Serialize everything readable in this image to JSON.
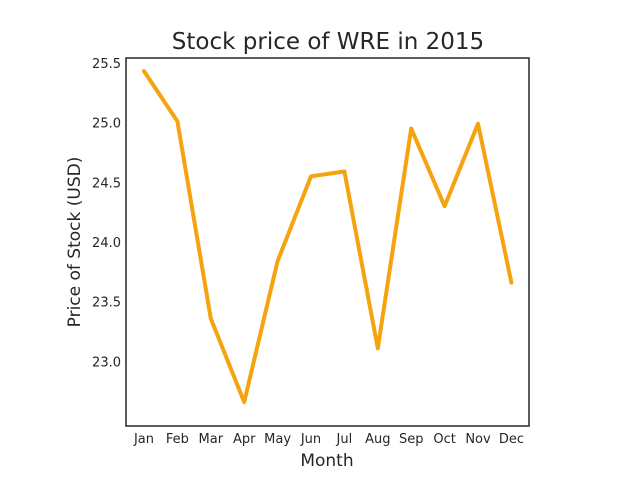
{
  "chart_data": {
    "type": "line",
    "title": "Stock price of WRE in 2015",
    "xlabel": "Month",
    "ylabel": "Price of Stock (USD)",
    "categories": [
      "Jan",
      "Feb",
      "Mar",
      "Apr",
      "May",
      "Jun",
      "Jul",
      "Aug",
      "Sep",
      "Oct",
      "Nov",
      "Dec"
    ],
    "series": [
      {
        "values": [
          25.43,
          25.01,
          23.36,
          22.66,
          23.84,
          24.55,
          24.59,
          23.11,
          24.95,
          24.3,
          24.99,
          23.66
        ]
      }
    ],
    "y_ticks": [
      "23.0",
      "23.5",
      "24.0",
      "24.5",
      "25.0",
      "25.5"
    ],
    "ylim": [
      22.46,
      25.54
    ],
    "grid": false,
    "line_color": "#f5a30f"
  }
}
